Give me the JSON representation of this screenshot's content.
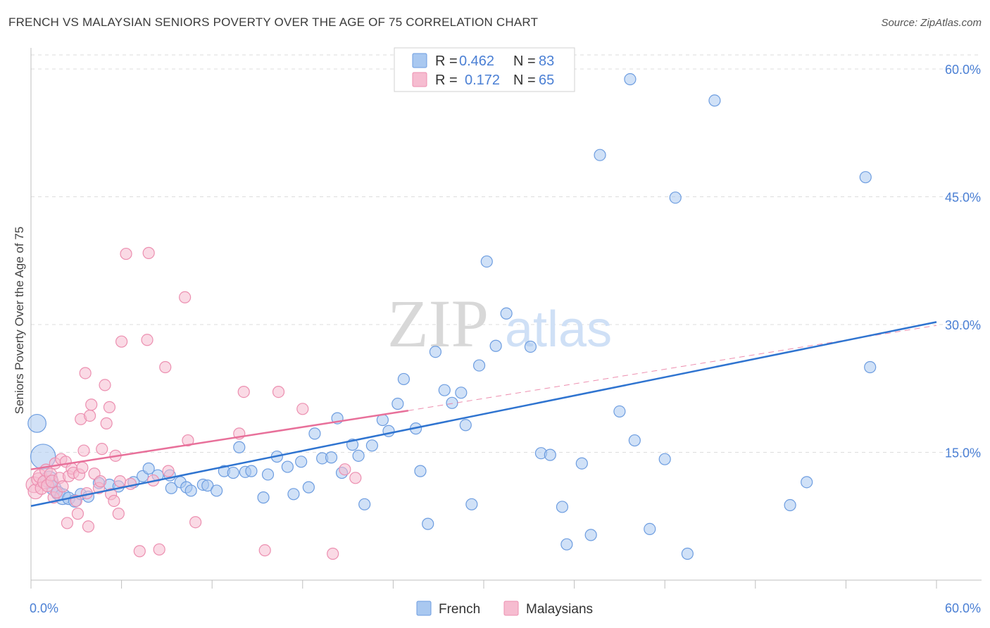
{
  "title": "FRENCH VS MALAYSIAN SENIORS POVERTY OVER THE AGE OF 75 CORRELATION CHART",
  "source": "Source: ZipAtlas.com",
  "watermark": {
    "zip": "ZIP",
    "atlas": "atlas"
  },
  "colors": {
    "french_fill": "#a9c8f0",
    "french_stroke": "#6d9de0",
    "french_line": "#2f74d0",
    "malaysian_fill": "#f6bcd0",
    "malaysian_stroke": "#ec8fb0",
    "malaysian_line": "#e8709a",
    "tick_label": "#4a7fd4",
    "grid": "#dddddd"
  },
  "legend": {
    "r_label": "R =",
    "n_label": "N =",
    "entries": [
      {
        "series": "French",
        "r": "0.462",
        "n": "83"
      },
      {
        "series": "Malaysians",
        "r": "0.172",
        "n": "65"
      }
    ]
  },
  "bottom_legend": [
    "French",
    "Malaysians"
  ],
  "chart_data": {
    "type": "scatter",
    "title": "FRENCH VS MALAYSIAN SENIORS POVERTY OVER THE AGE OF 75 CORRELATION CHART",
    "xlabel": "",
    "ylabel": "Seniors Poverty Over the Age of 75",
    "xlim": [
      0,
      60
    ],
    "ylim": [
      0,
      60
    ],
    "x_tick_labels": [
      "0.0%",
      "60.0%"
    ],
    "y_ticks": [
      15,
      30,
      45,
      60
    ],
    "y_tick_labels": [
      "15.0%",
      "30.0%",
      "45.0%",
      "60.0%"
    ],
    "grid": true,
    "legend_position": "top-center",
    "series": [
      {
        "name": "French",
        "r": 0.462,
        "n": 83,
        "trend": {
          "x": [
            0,
            60
          ],
          "y": [
            8.7,
            30.3
          ]
        },
        "points": [
          [
            0.4,
            18.4,
            1.6
          ],
          [
            0.8,
            14.5,
            2.2
          ],
          [
            1.2,
            11.8,
            1.5
          ],
          [
            1.5,
            10.8,
            1.3
          ],
          [
            1.8,
            10.2,
            1.2
          ],
          [
            2.1,
            9.8,
            1.4
          ],
          [
            2.5,
            9.6,
            1.1
          ],
          [
            2.9,
            9.3,
            1.1
          ],
          [
            3.3,
            10.1,
            1.0
          ],
          [
            3.8,
            9.8,
            1.0
          ],
          [
            4.5,
            11.4,
            1.0
          ],
          [
            5.2,
            11.2,
            1.0
          ],
          [
            5.8,
            11.0,
            1.0
          ],
          [
            6.8,
            11.5,
            1.0
          ],
          [
            7.4,
            12.2,
            1.0
          ],
          [
            7.8,
            13.1,
            1.0
          ],
          [
            8.4,
            12.3,
            1.0
          ],
          [
            9.2,
            12.3,
            1.0
          ],
          [
            9.3,
            10.8,
            1.0
          ],
          [
            9.9,
            11.5,
            1.0
          ],
          [
            10.3,
            10.9,
            1.0
          ],
          [
            10.6,
            10.5,
            1.0
          ],
          [
            11.4,
            11.2,
            1.0
          ],
          [
            11.7,
            11.1,
            1.0
          ],
          [
            12.3,
            10.5,
            1.0
          ],
          [
            12.8,
            12.8,
            1.0
          ],
          [
            13.4,
            12.6,
            1.0
          ],
          [
            13.8,
            15.6,
            1.0
          ],
          [
            14.2,
            12.7,
            1.0
          ],
          [
            14.6,
            12.8,
            1.0
          ],
          [
            15.4,
            9.7,
            1.0
          ],
          [
            15.7,
            12.4,
            1.0
          ],
          [
            16.3,
            14.5,
            1.0
          ],
          [
            17.0,
            13.3,
            1.0
          ],
          [
            17.4,
            10.1,
            1.0
          ],
          [
            17.9,
            13.9,
            1.0
          ],
          [
            18.4,
            10.9,
            1.0
          ],
          [
            18.8,
            17.2,
            1.0
          ],
          [
            19.3,
            14.3,
            1.0
          ],
          [
            19.9,
            14.4,
            1.0
          ],
          [
            20.3,
            19.0,
            1.0
          ],
          [
            20.6,
            12.6,
            1.0
          ],
          [
            21.3,
            15.9,
            1.0
          ],
          [
            21.7,
            14.6,
            1.0
          ],
          [
            22.1,
            8.9,
            1.0
          ],
          [
            22.6,
            15.8,
            1.0
          ],
          [
            23.3,
            18.8,
            1.0
          ],
          [
            23.7,
            17.5,
            1.0
          ],
          [
            24.3,
            20.7,
            1.0
          ],
          [
            24.7,
            23.6,
            1.0
          ],
          [
            25.5,
            17.8,
            1.0
          ],
          [
            25.8,
            12.8,
            1.0
          ],
          [
            26.3,
            6.6,
            1.0
          ],
          [
            26.8,
            26.8,
            1.0
          ],
          [
            27.4,
            22.3,
            1.0
          ],
          [
            27.9,
            20.8,
            1.0
          ],
          [
            28.5,
            22.0,
            1.0
          ],
          [
            28.8,
            18.2,
            1.0
          ],
          [
            29.2,
            8.9,
            1.0
          ],
          [
            29.7,
            25.2,
            1.0
          ],
          [
            30.2,
            37.4,
            1.0
          ],
          [
            30.8,
            27.5,
            1.0
          ],
          [
            31.5,
            31.3,
            1.0
          ],
          [
            33.1,
            27.4,
            1.0
          ],
          [
            33.8,
            14.9,
            1.0
          ],
          [
            34.4,
            14.7,
            1.0
          ],
          [
            35.2,
            8.6,
            1.0
          ],
          [
            35.5,
            4.2,
            1.0
          ],
          [
            36.5,
            13.7,
            1.0
          ],
          [
            37.1,
            5.3,
            1.0
          ],
          [
            37.7,
            49.9,
            1.0
          ],
          [
            39.0,
            19.8,
            1.0
          ],
          [
            39.7,
            58.8,
            1.0
          ],
          [
            40.0,
            16.4,
            1.0
          ],
          [
            41.0,
            6.0,
            1.0
          ],
          [
            42.0,
            14.2,
            1.0
          ],
          [
            42.7,
            44.9,
            1.0
          ],
          [
            43.5,
            3.1,
            1.0
          ],
          [
            45.3,
            56.3,
            1.0
          ],
          [
            50.3,
            8.8,
            1.0
          ],
          [
            51.4,
            11.5,
            1.0
          ],
          [
            55.3,
            47.3,
            1.0
          ],
          [
            55.6,
            25.0,
            1.0
          ]
        ]
      },
      {
        "name": "Malaysians",
        "r": 0.172,
        "n": 65,
        "trend": {
          "x": [
            0,
            25
          ],
          "y": [
            13.0,
            19.9
          ]
        },
        "trend_extended": {
          "x": [
            25,
            60
          ],
          "y": [
            19.9,
            29.9
          ]
        },
        "points": [
          [
            0.2,
            11.2,
            1.4
          ],
          [
            0.3,
            10.4,
            1.3
          ],
          [
            0.5,
            11.8,
            1.2
          ],
          [
            0.6,
            12.2,
            1.2
          ],
          [
            0.7,
            10.8,
            1.1
          ],
          [
            0.9,
            11.5,
            1.2
          ],
          [
            1.0,
            12.9,
            1.1
          ],
          [
            1.1,
            11.1,
            1.1
          ],
          [
            1.3,
            12.4,
            1.1
          ],
          [
            1.4,
            11.6,
            1.1
          ],
          [
            1.5,
            9.7,
            1.0
          ],
          [
            1.6,
            13.7,
            1.0
          ],
          [
            1.7,
            10.3,
            1.0
          ],
          [
            1.9,
            12.0,
            1.0
          ],
          [
            2.0,
            14.2,
            1.0
          ],
          [
            2.1,
            11.0,
            1.0
          ],
          [
            2.3,
            13.9,
            1.0
          ],
          [
            2.4,
            6.7,
            1.0
          ],
          [
            2.5,
            12.2,
            1.0
          ],
          [
            2.7,
            13.1,
            1.0
          ],
          [
            2.8,
            12.6,
            1.0
          ],
          [
            3.0,
            9.3,
            1.0
          ],
          [
            3.1,
            7.8,
            1.0
          ],
          [
            3.2,
            12.4,
            1.0
          ],
          [
            3.3,
            18.9,
            1.0
          ],
          [
            3.4,
            13.2,
            1.0
          ],
          [
            3.5,
            15.2,
            1.0
          ],
          [
            3.6,
            24.3,
            1.0
          ],
          [
            3.7,
            10.2,
            1.0
          ],
          [
            3.8,
            6.3,
            1.0
          ],
          [
            3.9,
            19.3,
            1.0
          ],
          [
            4.0,
            20.6,
            1.0
          ],
          [
            4.2,
            12.5,
            1.0
          ],
          [
            4.5,
            10.8,
            1.0
          ],
          [
            4.6,
            11.6,
            1.0
          ],
          [
            4.7,
            15.4,
            1.0
          ],
          [
            4.9,
            22.9,
            1.0
          ],
          [
            5.0,
            18.4,
            1.0
          ],
          [
            5.2,
            20.3,
            1.0
          ],
          [
            5.3,
            10.1,
            1.0
          ],
          [
            5.5,
            9.3,
            1.0
          ],
          [
            5.6,
            14.6,
            1.0
          ],
          [
            5.8,
            7.8,
            1.0
          ],
          [
            5.9,
            11.6,
            1.0
          ],
          [
            6.0,
            28.0,
            1.0
          ],
          [
            6.3,
            38.3,
            1.0
          ],
          [
            6.6,
            11.3,
            1.0
          ],
          [
            7.2,
            3.4,
            1.0
          ],
          [
            7.7,
            28.2,
            1.0
          ],
          [
            7.8,
            38.4,
            1.0
          ],
          [
            8.1,
            11.7,
            1.0
          ],
          [
            8.5,
            3.6,
            1.0
          ],
          [
            8.9,
            25.0,
            1.0
          ],
          [
            9.1,
            12.8,
            1.0
          ],
          [
            10.2,
            33.2,
            1.0
          ],
          [
            10.4,
            16.4,
            1.0
          ],
          [
            10.9,
            6.8,
            1.0
          ],
          [
            13.8,
            17.2,
            1.0
          ],
          [
            14.1,
            22.1,
            1.0
          ],
          [
            15.5,
            3.5,
            1.0
          ],
          [
            16.4,
            22.1,
            1.0
          ],
          [
            18.0,
            20.1,
            1.0
          ],
          [
            20.0,
            3.1,
            1.0
          ],
          [
            20.8,
            13.0,
            1.0
          ],
          [
            21.5,
            12.0,
            1.0
          ]
        ]
      }
    ]
  }
}
